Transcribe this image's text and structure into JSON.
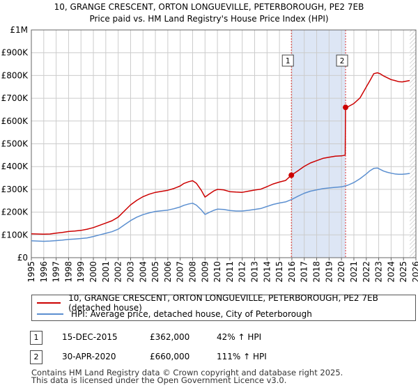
{
  "chart_data": {
    "type": "line",
    "title": "10, GRANGE CRESCENT, ORTON LONGUEVILLE, PETERBOROUGH, PE2 7EB",
    "subtitle": "Price paid vs. HM Land Registry's House Price Index (HPI)",
    "xlabel": "",
    "ylabel": "",
    "xlim": [
      1995,
      2026
    ],
    "ylim": [
      0,
      1000000
    ],
    "x_ticks": [
      1995,
      1996,
      1997,
      1998,
      1999,
      2000,
      2001,
      2002,
      2003,
      2004,
      2005,
      2006,
      2007,
      2008,
      2009,
      2010,
      2011,
      2012,
      2013,
      2014,
      2015,
      2016,
      2017,
      2018,
      2019,
      2020,
      2021,
      2022,
      2023,
      2024,
      2025,
      2026
    ],
    "y_ticks": [
      {
        "value": 0,
        "label": "£0"
      },
      {
        "value": 100000,
        "label": "£100K"
      },
      {
        "value": 200000,
        "label": "£200K"
      },
      {
        "value": 300000,
        "label": "£300K"
      },
      {
        "value": 400000,
        "label": "£400K"
      },
      {
        "value": 500000,
        "label": "£500K"
      },
      {
        "value": 600000,
        "label": "£600K"
      },
      {
        "value": 700000,
        "label": "£700K"
      },
      {
        "value": 800000,
        "label": "£800K"
      },
      {
        "value": 900000,
        "label": "£900K"
      },
      {
        "value": 1000000,
        "label": "£1M"
      }
    ],
    "grid": true,
    "shaded_region": {
      "from": 2015.96,
      "to": 2020.33
    },
    "hatched_from": 2025.5,
    "series": [
      {
        "name": "10, GRANGE CRESCENT, ORTON LONGUEVILLE, PETERBOROUGH, PE2 7EB (detached house)",
        "color": "#cc0000",
        "x": [
          1995,
          1995.5,
          1996,
          1996.5,
          1997,
          1997.5,
          1998,
          1998.5,
          1999,
          1999.5,
          2000,
          2000.5,
          2001,
          2001.5,
          2002,
          2002.5,
          2003,
          2003.5,
          2004,
          2004.5,
          2005,
          2005.5,
          2006,
          2006.5,
          2007,
          2007.3,
          2007.7,
          2008,
          2008.3,
          2008.7,
          2009,
          2009.3,
          2009.7,
          2010,
          2010.5,
          2011,
          2011.5,
          2012,
          2012.5,
          2013,
          2013.5,
          2014,
          2014.5,
          2015,
          2015.5,
          2015.96,
          2016.5,
          2017,
          2017.5,
          2018,
          2018.5,
          2019,
          2019.5,
          2020.0,
          2020.3,
          2020.33,
          2020.5,
          2021,
          2021.5,
          2022,
          2022.3,
          2022.6,
          2022.9,
          2023.1,
          2023.4,
          2023.7,
          2024,
          2024.3,
          2024.6,
          2024.9,
          2025.2,
          2025.5
        ],
        "values": [
          105000,
          104000,
          103000,
          104000,
          108000,
          111000,
          115000,
          117000,
          120000,
          125000,
          132000,
          142000,
          152000,
          162000,
          178000,
          205000,
          232000,
          252000,
          268000,
          279000,
          287000,
          291000,
          296000,
          304000,
          315000,
          326000,
          334000,
          338000,
          327000,
          296000,
          266000,
          278000,
          293000,
          300000,
          298000,
          290000,
          288000,
          287000,
          292000,
          297000,
          301000,
          312000,
          324000,
          332000,
          339000,
          362000,
          382000,
          401000,
          416000,
          426000,
          436000,
          441000,
          446000,
          447000,
          450000,
          660000,
          662000,
          677000,
          702000,
          750000,
          778000,
          808000,
          812000,
          808000,
          798000,
          790000,
          782000,
          778000,
          773000,
          772000,
          775000,
          778000
        ]
      },
      {
        "name": "HPI: Average price, detached house, City of Peterborough",
        "color": "#5b8fd0",
        "x": [
          1995,
          1995.5,
          1996,
          1996.5,
          1997,
          1997.5,
          1998,
          1998.5,
          1999,
          1999.5,
          2000,
          2000.5,
          2001,
          2001.5,
          2002,
          2002.5,
          2003,
          2003.5,
          2004,
          2004.5,
          2005,
          2005.5,
          2006,
          2006.5,
          2007,
          2007.3,
          2007.7,
          2008,
          2008.3,
          2008.7,
          2009,
          2009.3,
          2009.7,
          2010,
          2010.5,
          2011,
          2011.5,
          2012,
          2012.5,
          2013,
          2013.5,
          2014,
          2014.5,
          2015,
          2015.5,
          2016,
          2016.5,
          2017,
          2017.5,
          2018,
          2018.5,
          2019,
          2019.5,
          2020,
          2020.5,
          2021,
          2021.5,
          2022,
          2022.3,
          2022.6,
          2022.9,
          2023.1,
          2023.4,
          2023.7,
          2024,
          2024.3,
          2024.6,
          2024.9,
          2025.2,
          2025.5
        ],
        "values": [
          74000,
          73000,
          72000,
          73000,
          75000,
          77000,
          80000,
          82000,
          84000,
          87000,
          93000,
          100000,
          107000,
          114000,
          125000,
          144000,
          163000,
          178000,
          189000,
          197000,
          203000,
          206000,
          209000,
          215000,
          223000,
          230000,
          236000,
          239000,
          231000,
          210000,
          190000,
          198000,
          208000,
          213000,
          212000,
          207000,
          205000,
          205000,
          208000,
          212000,
          216000,
          225000,
          234000,
          240000,
          245000,
          256000,
          270000,
          283000,
          292000,
          298000,
          303000,
          306000,
          309000,
          311000,
          318000,
          330000,
          347000,
          368000,
          382000,
          392000,
          394000,
          388000,
          380000,
          375000,
          371000,
          368000,
          366000,
          366000,
          368000,
          370000
        ]
      }
    ],
    "sales": [
      {
        "id": "1",
        "x": 2015.96,
        "value": 362000
      },
      {
        "id": "2",
        "x": 2020.33,
        "value": 660000
      }
    ]
  },
  "legend": {
    "property_label": "10, GRANGE CRESCENT, ORTON LONGUEVILLE, PETERBOROUGH, PE2 7EB (detached house)",
    "hpi_label": "HPI: Average price, detached house, City of Peterborough"
  },
  "sales_table": [
    {
      "id": "1",
      "date": "15-DEC-2015",
      "price": "£362,000",
      "hpi": "42% ↑ HPI"
    },
    {
      "id": "2",
      "date": "30-APR-2020",
      "price": "£660,000",
      "hpi": "111% ↑ HPI"
    }
  ],
  "footer": {
    "line1": "Contains HM Land Registry data © Crown copyright and database right 2025.",
    "line2": "This data is licensed under the Open Government Licence v3.0."
  },
  "colors": {
    "property": "#cc0000",
    "hpi": "#5b8fd0",
    "shade": "#dde6f5",
    "grid": "#cccccc"
  }
}
